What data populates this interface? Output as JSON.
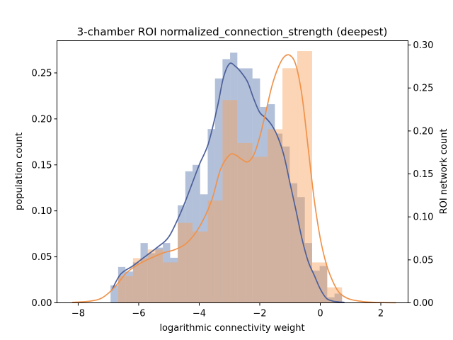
{
  "chart_data": {
    "type": "histogram",
    "title": "3-chamber ROI normalized_connection_strength (deepest)",
    "xlabel": "logarithmic connectivity weight",
    "ylabel_left": "population count",
    "ylabel_right": "ROI network count",
    "xlim": [
      -8.7,
      2.9
    ],
    "ylim_left": [
      0,
      0.285
    ],
    "ylim_right": [
      0,
      0.305
    ],
    "xticks": [
      -8,
      -6,
      -4,
      -2,
      0,
      2
    ],
    "yticks_left": [
      0.0,
      0.05,
      0.1,
      0.15,
      0.2,
      0.25
    ],
    "yticks_right": [
      0.0,
      0.05,
      0.1,
      0.15,
      0.2,
      0.25,
      0.3
    ],
    "grid": false,
    "colors": {
      "population_bar": "#4a6aa5",
      "population_line": "#4c5f99",
      "roi_bar": "#f7a15a",
      "roi_line": "#f0924a"
    },
    "series": [
      {
        "axis": "left",
        "bins": [
          {
            "x0": -6.93,
            "x1": -6.68,
            "y": 0.019
          },
          {
            "x0": -6.68,
            "x1": -6.44,
            "y": 0.039
          },
          {
            "x0": -6.44,
            "x1": -6.19,
            "y": 0.034
          },
          {
            "x0": -6.19,
            "x1": -5.94,
            "y": 0.044
          },
          {
            "x0": -5.94,
            "x1": -5.7,
            "y": 0.065
          },
          {
            "x0": -5.7,
            "x1": -5.45,
            "y": 0.054
          },
          {
            "x0": -5.45,
            "x1": -5.2,
            "y": 0.06
          },
          {
            "x0": -5.2,
            "x1": -4.96,
            "y": 0.065
          },
          {
            "x0": -4.96,
            "x1": -4.71,
            "y": 0.049
          },
          {
            "x0": -4.71,
            "x1": -4.46,
            "y": 0.106
          },
          {
            "x0": -4.46,
            "x1": -4.22,
            "y": 0.143
          },
          {
            "x0": -4.22,
            "x1": -3.97,
            "y": 0.15
          },
          {
            "x0": -3.97,
            "x1": -3.72,
            "y": 0.118
          },
          {
            "x0": -3.72,
            "x1": -3.48,
            "y": 0.189
          },
          {
            "x0": -3.48,
            "x1": -3.23,
            "y": 0.244
          },
          {
            "x0": -3.23,
            "x1": -2.98,
            "y": 0.265
          },
          {
            "x0": -2.98,
            "x1": -2.74,
            "y": 0.272
          },
          {
            "x0": -2.74,
            "x1": -2.49,
            "y": 0.255
          },
          {
            "x0": -2.49,
            "x1": -2.24,
            "y": 0.255
          },
          {
            "x0": -2.24,
            "x1": -1.99,
            "y": 0.244
          },
          {
            "x0": -1.99,
            "x1": -1.75,
            "y": 0.213
          },
          {
            "x0": -1.75,
            "x1": -1.5,
            "y": 0.216
          },
          {
            "x0": -1.5,
            "x1": -1.25,
            "y": 0.184
          },
          {
            "x0": -1.25,
            "x1": -1.01,
            "y": 0.17
          },
          {
            "x0": -1.01,
            "x1": -0.76,
            "y": 0.13
          },
          {
            "x0": -0.76,
            "x1": -0.51,
            "y": 0.115
          },
          {
            "x0": -0.51,
            "x1": -0.27,
            "y": 0.065
          },
          {
            "x0": -0.27,
            "x1": -0.02,
            "y": 0.035
          },
          {
            "x0": -0.02,
            "x1": 0.23,
            "y": 0.04
          },
          {
            "x0": 0.23,
            "x1": 0.47,
            "y": 0.006
          },
          {
            "x0": 0.47,
            "x1": 0.72,
            "y": 0.01
          }
        ],
        "kde_x": [
          -6.9,
          -6.6,
          -6.2,
          -5.8,
          -5.4,
          -5.0,
          -4.6,
          -4.3,
          -4.0,
          -3.7,
          -3.4,
          -3.2,
          -3.0,
          -2.8,
          -2.6,
          -2.4,
          -2.2,
          -2.0,
          -1.8,
          -1.6,
          -1.4,
          -1.2,
          -1.0,
          -0.8,
          -0.6,
          -0.4,
          -0.2,
          0.0,
          0.2,
          0.4,
          0.6,
          0.8
        ],
        "kde_y": [
          0.013,
          0.031,
          0.04,
          0.05,
          0.06,
          0.072,
          0.099,
          0.124,
          0.15,
          0.173,
          0.213,
          0.245,
          0.26,
          0.257,
          0.25,
          0.24,
          0.222,
          0.207,
          0.201,
          0.193,
          0.18,
          0.16,
          0.13,
          0.1,
          0.069,
          0.045,
          0.03,
          0.015,
          0.005,
          0.002,
          0.001,
          0.0005
        ]
      },
      {
        "axis": "right",
        "bins": [
          {
            "x0": -6.68,
            "x1": -6.19,
            "y": 0.031
          },
          {
            "x0": -6.19,
            "x1": -5.7,
            "y": 0.052
          },
          {
            "x0": -5.7,
            "x1": -5.2,
            "y": 0.062
          },
          {
            "x0": -5.2,
            "x1": -4.71,
            "y": 0.047
          },
          {
            "x0": -4.71,
            "x1": -4.22,
            "y": 0.093
          },
          {
            "x0": -4.22,
            "x1": -3.72,
            "y": 0.083
          },
          {
            "x0": -3.72,
            "x1": -3.23,
            "y": 0.119
          },
          {
            "x0": -3.23,
            "x1": -2.74,
            "y": 0.236
          },
          {
            "x0": -2.74,
            "x1": -2.24,
            "y": 0.186
          },
          {
            "x0": -2.24,
            "x1": -1.75,
            "y": 0.17
          },
          {
            "x0": -1.75,
            "x1": -1.25,
            "y": 0.202
          },
          {
            "x0": -1.25,
            "x1": -0.76,
            "y": 0.273
          },
          {
            "x0": -0.76,
            "x1": -0.27,
            "y": 0.293
          },
          {
            "x0": -0.27,
            "x1": 0.23,
            "y": 0.047
          },
          {
            "x0": 0.23,
            "x1": 0.72,
            "y": 0.018
          }
        ],
        "kde_x": [
          -8.2,
          -7.6,
          -7.2,
          -6.8,
          -6.4,
          -6.0,
          -5.6,
          -5.2,
          -4.8,
          -4.4,
          -4.0,
          -3.6,
          -3.3,
          -3.0,
          -2.8,
          -2.6,
          -2.4,
          -2.2,
          -2.0,
          -1.8,
          -1.6,
          -1.4,
          -1.2,
          -1.0,
          -0.8,
          -0.6,
          -0.4,
          -0.2,
          0.0,
          0.2,
          0.4,
          0.6,
          0.8,
          1.0,
          1.4,
          1.8,
          2.2,
          2.5
        ],
        "kde_y": [
          0.0005,
          0.002,
          0.006,
          0.018,
          0.035,
          0.045,
          0.052,
          0.058,
          0.062,
          0.07,
          0.088,
          0.118,
          0.155,
          0.172,
          0.172,
          0.167,
          0.164,
          0.172,
          0.193,
          0.222,
          0.252,
          0.273,
          0.286,
          0.288,
          0.276,
          0.24,
          0.18,
          0.12,
          0.075,
          0.045,
          0.026,
          0.013,
          0.007,
          0.004,
          0.0015,
          0.0005,
          0.0002,
          0.0001
        ]
      }
    ]
  }
}
